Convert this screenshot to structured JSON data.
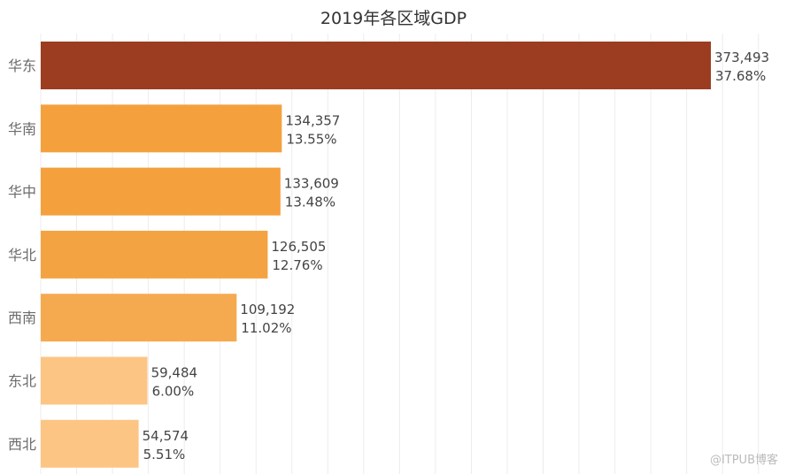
{
  "chart_data": {
    "type": "bar",
    "orientation": "horizontal",
    "title": "2019年各区域GDP",
    "xlabel": "",
    "ylabel": "",
    "categories": [
      "华东",
      "华南",
      "华中",
      "华北",
      "西南",
      "东北",
      "西北"
    ],
    "values": [
      373493,
      134357,
      133609,
      126505,
      109192,
      59484,
      54574
    ],
    "value_labels": [
      "373,493",
      "134,357",
      "133,609",
      "126,505",
      "109,192",
      "59,484",
      "54,574"
    ],
    "percent_labels": [
      "37.68%",
      "13.55%",
      "13.48%",
      "12.76%",
      "11.02%",
      "6.00%",
      "5.51%"
    ],
    "colors": [
      "#9C3D22",
      "#F4A03D",
      "#F4A03D",
      "#F4A342",
      "#F5AA50",
      "#FDC584",
      "#FDC584"
    ],
    "xlim": [
      0,
      400000
    ],
    "grid_step": 20000,
    "grid": true,
    "x_axis_visible": false,
    "legend": "none"
  },
  "watermark": "@ITPUB博客"
}
